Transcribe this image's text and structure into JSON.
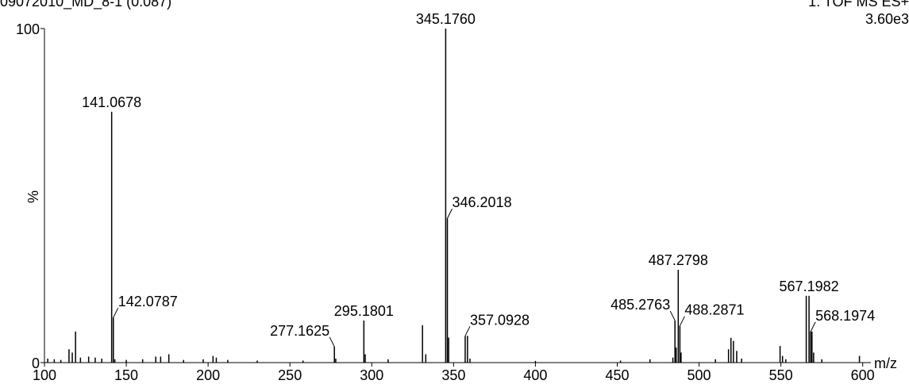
{
  "chart_data": {
    "type": "spectrum",
    "title": "09072010_MD_8-1 (0.087)",
    "subtitle": "1: TOF MS ES+",
    "intensity_label": "3.60e3",
    "y_label": "%",
    "x_label": "m/z",
    "color": "#000000",
    "xlim": [
      100,
      605
    ],
    "ylim": [
      0,
      100
    ],
    "xticks": [
      100,
      150,
      200,
      250,
      300,
      350,
      400,
      450,
      500,
      550,
      600
    ],
    "yticks": [
      0,
      100
    ],
    "x": [
      102,
      106,
      110,
      115,
      117,
      119,
      122,
      127,
      131,
      135,
      141.0678,
      142.0787,
      143,
      150,
      160,
      168,
      171,
      176,
      185,
      197,
      203,
      205,
      212,
      230,
      258,
      277.1625,
      278,
      295.1801,
      296,
      310,
      331,
      333,
      345.176,
      346.2018,
      347,
      357.0928,
      358.5,
      360,
      400,
      452,
      470,
      484,
      485.2763,
      486,
      487.2798,
      488.2871,
      489,
      510,
      518,
      519.5,
      521,
      523,
      526,
      549.5,
      551,
      553,
      565.5,
      567.1982,
      568.1974,
      569,
      570,
      575,
      598
    ],
    "values": [
      1.2,
      1.0,
      0.8,
      4.0,
      3.0,
      9.3,
      1.5,
      1.8,
      1.5,
      1.2,
      75.1,
      13.5,
      1.0,
      0.8,
      1.0,
      1.8,
      1.8,
      2.5,
      0.8,
      1.0,
      2.0,
      1.5,
      0.8,
      0.6,
      0.6,
      4.8,
      1.2,
      12.6,
      2.5,
      1.0,
      11.2,
      2.5,
      100,
      43.2,
      7.5,
      8.0,
      8.0,
      1.2,
      0.5,
      0.6,
      1.0,
      1.5,
      12.6,
      4.5,
      27.8,
      11.0,
      3.0,
      1.0,
      4.0,
      7.4,
      6.5,
      3.5,
      1.2,
      5.0,
      2.0,
      1.0,
      20.0,
      20.0,
      9.3,
      9.3,
      3.0,
      1.0,
      2.0
    ],
    "x_labels": [
      null,
      null,
      null,
      null,
      null,
      null,
      null,
      null,
      null,
      null,
      "141.0678",
      "142.0787",
      null,
      null,
      null,
      null,
      null,
      null,
      null,
      null,
      null,
      null,
      null,
      null,
      null,
      "277.1625",
      null,
      "295.1801",
      null,
      null,
      null,
      null,
      "345.1760",
      "346.2018",
      null,
      "357.0928",
      null,
      null,
      null,
      null,
      null,
      null,
      "485.2763",
      null,
      "487.2798",
      "488.2871",
      null,
      null,
      null,
      null,
      null,
      null,
      null,
      null,
      null,
      null,
      null,
      "567.1982",
      "568.1974",
      null,
      null,
      null,
      null
    ]
  }
}
